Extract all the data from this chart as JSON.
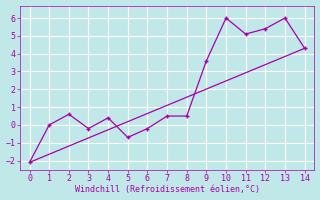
{
  "xlabel": "Windchill (Refroidissement éolien,°C)",
  "xlim": [
    -0.5,
    14.5
  ],
  "ylim": [
    -2.5,
    6.7
  ],
  "xticks": [
    0,
    1,
    2,
    3,
    4,
    5,
    6,
    7,
    8,
    9,
    10,
    11,
    12,
    13,
    14
  ],
  "yticks": [
    -2,
    -1,
    0,
    1,
    2,
    3,
    4,
    5,
    6
  ],
  "bg_color": "#c0e8e8",
  "line_color": "#aa00aa",
  "grid_color": "#ffffff",
  "line1_x": [
    0,
    1,
    2,
    3,
    4,
    5,
    6,
    7,
    8,
    9,
    10,
    11,
    12,
    13,
    14
  ],
  "line1_y": [
    -2.1,
    0.0,
    0.6,
    -0.2,
    0.4,
    -0.7,
    -0.2,
    0.5,
    0.5,
    3.6,
    6.0,
    5.1,
    5.4,
    6.0,
    4.3
  ],
  "line2_x": [
    0,
    14
  ],
  "line2_y": [
    -2.1,
    4.3
  ],
  "tick_fontsize": 6,
  "xlabel_fontsize": 6
}
